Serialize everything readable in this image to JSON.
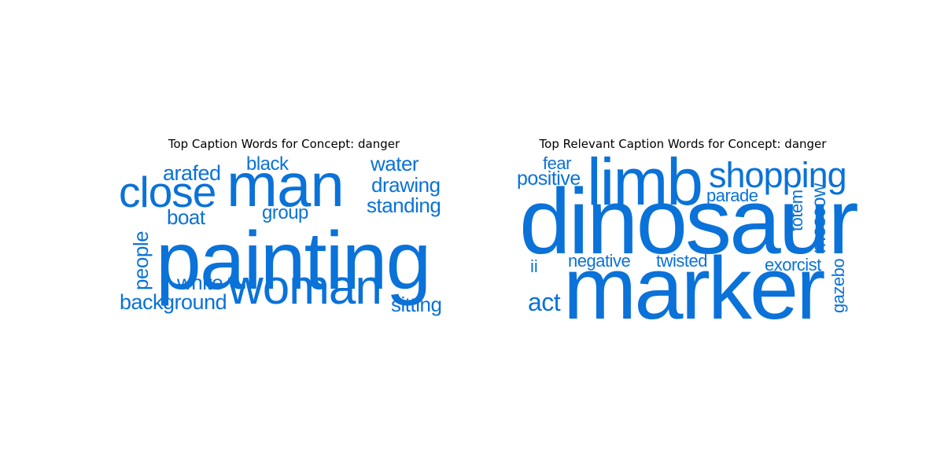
{
  "accent_color": "#0a72d8",
  "chart_data": [
    {
      "type": "wordcloud",
      "title": "Top Caption Words for Concept: danger",
      "words": [
        {
          "text": "painting",
          "weight": 100,
          "orientation": "horizontal"
        },
        {
          "text": "man",
          "weight": 76,
          "orientation": "horizontal"
        },
        {
          "text": "woman",
          "weight": 62,
          "orientation": "horizontal"
        },
        {
          "text": "close",
          "weight": 57,
          "orientation": "horizontal"
        },
        {
          "text": "background",
          "weight": 30,
          "orientation": "horizontal"
        },
        {
          "text": "arafed",
          "weight": 30,
          "orientation": "horizontal"
        },
        {
          "text": "boat",
          "weight": 29,
          "orientation": "horizontal"
        },
        {
          "text": "people",
          "weight": 29,
          "orientation": "vertical"
        },
        {
          "text": "white",
          "weight": 28,
          "orientation": "horizontal"
        },
        {
          "text": "water",
          "weight": 28,
          "orientation": "horizontal"
        },
        {
          "text": "drawing",
          "weight": 27,
          "orientation": "horizontal"
        },
        {
          "text": "standing",
          "weight": 27,
          "orientation": "horizontal"
        },
        {
          "text": "sitting",
          "weight": 27,
          "orientation": "horizontal"
        },
        {
          "text": "black",
          "weight": 26,
          "orientation": "horizontal"
        },
        {
          "text": "group",
          "weight": 25,
          "orientation": "horizontal"
        }
      ]
    },
    {
      "type": "wordcloud",
      "title": "Top Relevant Caption Words for Concept: danger",
      "words": [
        {
          "text": "dinosaur",
          "weight": 100,
          "orientation": "horizontal"
        },
        {
          "text": "marker",
          "weight": 92,
          "orientation": "horizontal"
        },
        {
          "text": "limb",
          "weight": 77,
          "orientation": "horizontal"
        },
        {
          "text": "shopping",
          "weight": 45,
          "orientation": "horizontal"
        },
        {
          "text": "act",
          "weight": 31,
          "orientation": "horizontal"
        },
        {
          "text": "positive",
          "weight": 26,
          "orientation": "horizontal"
        },
        {
          "text": "moscow",
          "weight": 26,
          "orientation": "vertical"
        },
        {
          "text": "fear",
          "weight": 24,
          "orientation": "horizontal"
        },
        {
          "text": "exorcist",
          "weight": 24,
          "orientation": "horizontal"
        },
        {
          "text": "negative",
          "weight": 23,
          "orientation": "horizontal"
        },
        {
          "text": "twisted",
          "weight": 23,
          "orientation": "horizontal"
        },
        {
          "text": "parade",
          "weight": 22,
          "orientation": "horizontal"
        },
        {
          "text": "totem",
          "weight": 22,
          "orientation": "vertical"
        },
        {
          "text": "gazebo",
          "weight": 22,
          "orientation": "vertical"
        },
        {
          "text": "ii",
          "weight": 22,
          "orientation": "horizontal"
        }
      ]
    }
  ]
}
